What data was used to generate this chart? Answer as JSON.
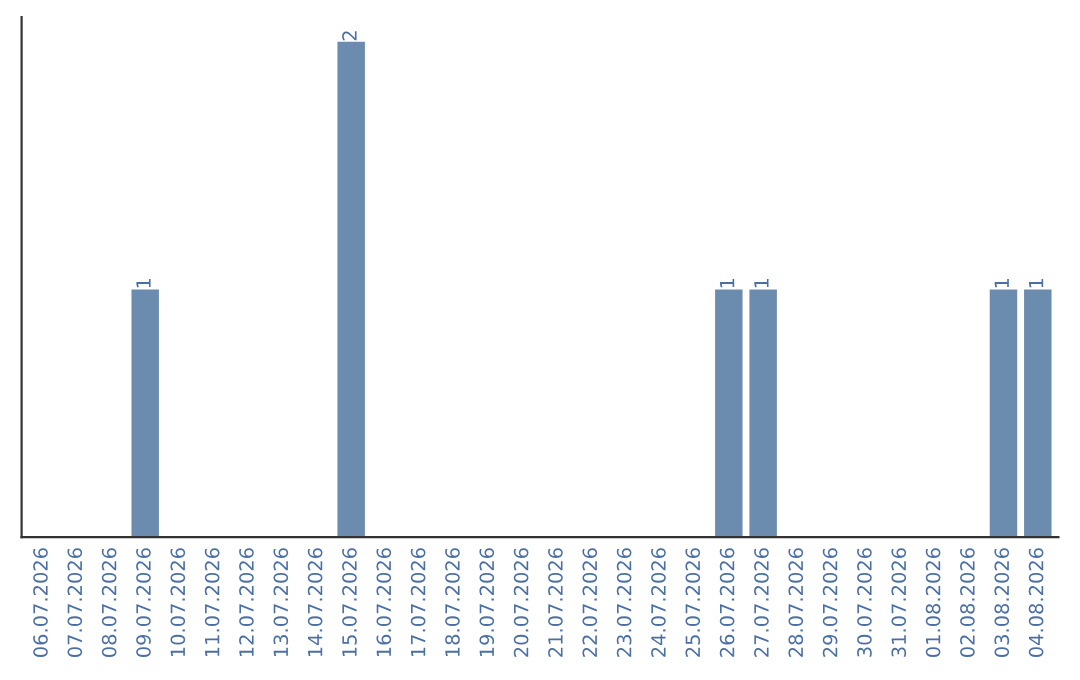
{
  "chart_data": {
    "type": "bar",
    "categories": [
      "06.07.2026",
      "07.07.2026",
      "08.07.2026",
      "09.07.2026",
      "10.07.2026",
      "11.07.2026",
      "12.07.2026",
      "13.07.2026",
      "14.07.2026",
      "15.07.2026",
      "16.07.2026",
      "17.07.2026",
      "18.07.2026",
      "19.07.2026",
      "20.07.2026",
      "21.07.2026",
      "22.07.2026",
      "23.07.2026",
      "24.07.2026",
      "25.07.2026",
      "26.07.2026",
      "27.07.2026",
      "28.07.2026",
      "29.07.2026",
      "30.07.2026",
      "31.07.2026",
      "01.08.2026",
      "02.08.2026",
      "03.08.2026",
      "04.08.2026"
    ],
    "values": [
      0,
      0,
      0,
      1,
      0,
      0,
      0,
      0,
      0,
      2,
      0,
      0,
      0,
      0,
      0,
      0,
      0,
      0,
      0,
      0,
      1,
      1,
      0,
      0,
      0,
      0,
      0,
      0,
      1,
      1
    ],
    "value_labels": [
      null,
      null,
      null,
      "1",
      null,
      null,
      null,
      null,
      null,
      "2",
      null,
      null,
      null,
      null,
      null,
      null,
      null,
      null,
      null,
      null,
      "1",
      "1",
      null,
      null,
      null,
      null,
      null,
      null,
      "1",
      "1"
    ],
    "color": "#6b8cae",
    "tick_labels": "x",
    "grid": false
  }
}
